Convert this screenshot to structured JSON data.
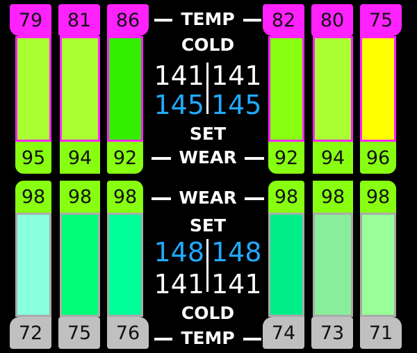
{
  "front": {
    "tires": [
      {
        "temp": "79",
        "wear": "95",
        "bar_color": "#aaff33"
      },
      {
        "temp": "81",
        "wear": "94",
        "bar_color": "#aaff33"
      },
      {
        "temp": "86",
        "wear": "92",
        "bar_color": "#33ee00"
      },
      {
        "temp": "82",
        "wear": "92",
        "bar_color": "#88ff11"
      },
      {
        "temp": "80",
        "wear": "94",
        "bar_color": "#aaff33"
      },
      {
        "temp": "75",
        "wear": "96",
        "bar_color": "#ffff00"
      }
    ],
    "labels": {
      "temp": "TEMP",
      "cold": "COLD",
      "set": "SET",
      "wear": "WEAR"
    },
    "pressure": {
      "cold_left": "141",
      "cold_right": "141",
      "set_left": "145",
      "set_right": "145"
    }
  },
  "rear": {
    "tires": [
      {
        "wear": "98",
        "temp": "72",
        "bar_color": "#88ffdd"
      },
      {
        "wear": "98",
        "temp": "75",
        "bar_color": "#00ff77"
      },
      {
        "wear": "98",
        "temp": "76",
        "bar_color": "#00ff99"
      },
      {
        "wear": "98",
        "temp": "74",
        "bar_color": "#00ee88"
      },
      {
        "wear": "98",
        "temp": "73",
        "bar_color": "#88ee99"
      },
      {
        "wear": "98",
        "temp": "71",
        "bar_color": "#99ff99"
      }
    ],
    "labels": {
      "wear": "WEAR",
      "set": "SET",
      "cold": "COLD",
      "temp": "TEMP"
    },
    "pressure": {
      "set_left": "148",
      "set_right": "148",
      "cold_left": "141",
      "cold_right": "141"
    }
  },
  "colors": {
    "background": "#000000",
    "front_temp": "#ff22ff",
    "wear": "#88ff11",
    "rear_temp": "#c0c0c0",
    "rear_border": "#aaaaaa",
    "set_pressure": "#22aaff",
    "text_white": "#ffffff"
  }
}
